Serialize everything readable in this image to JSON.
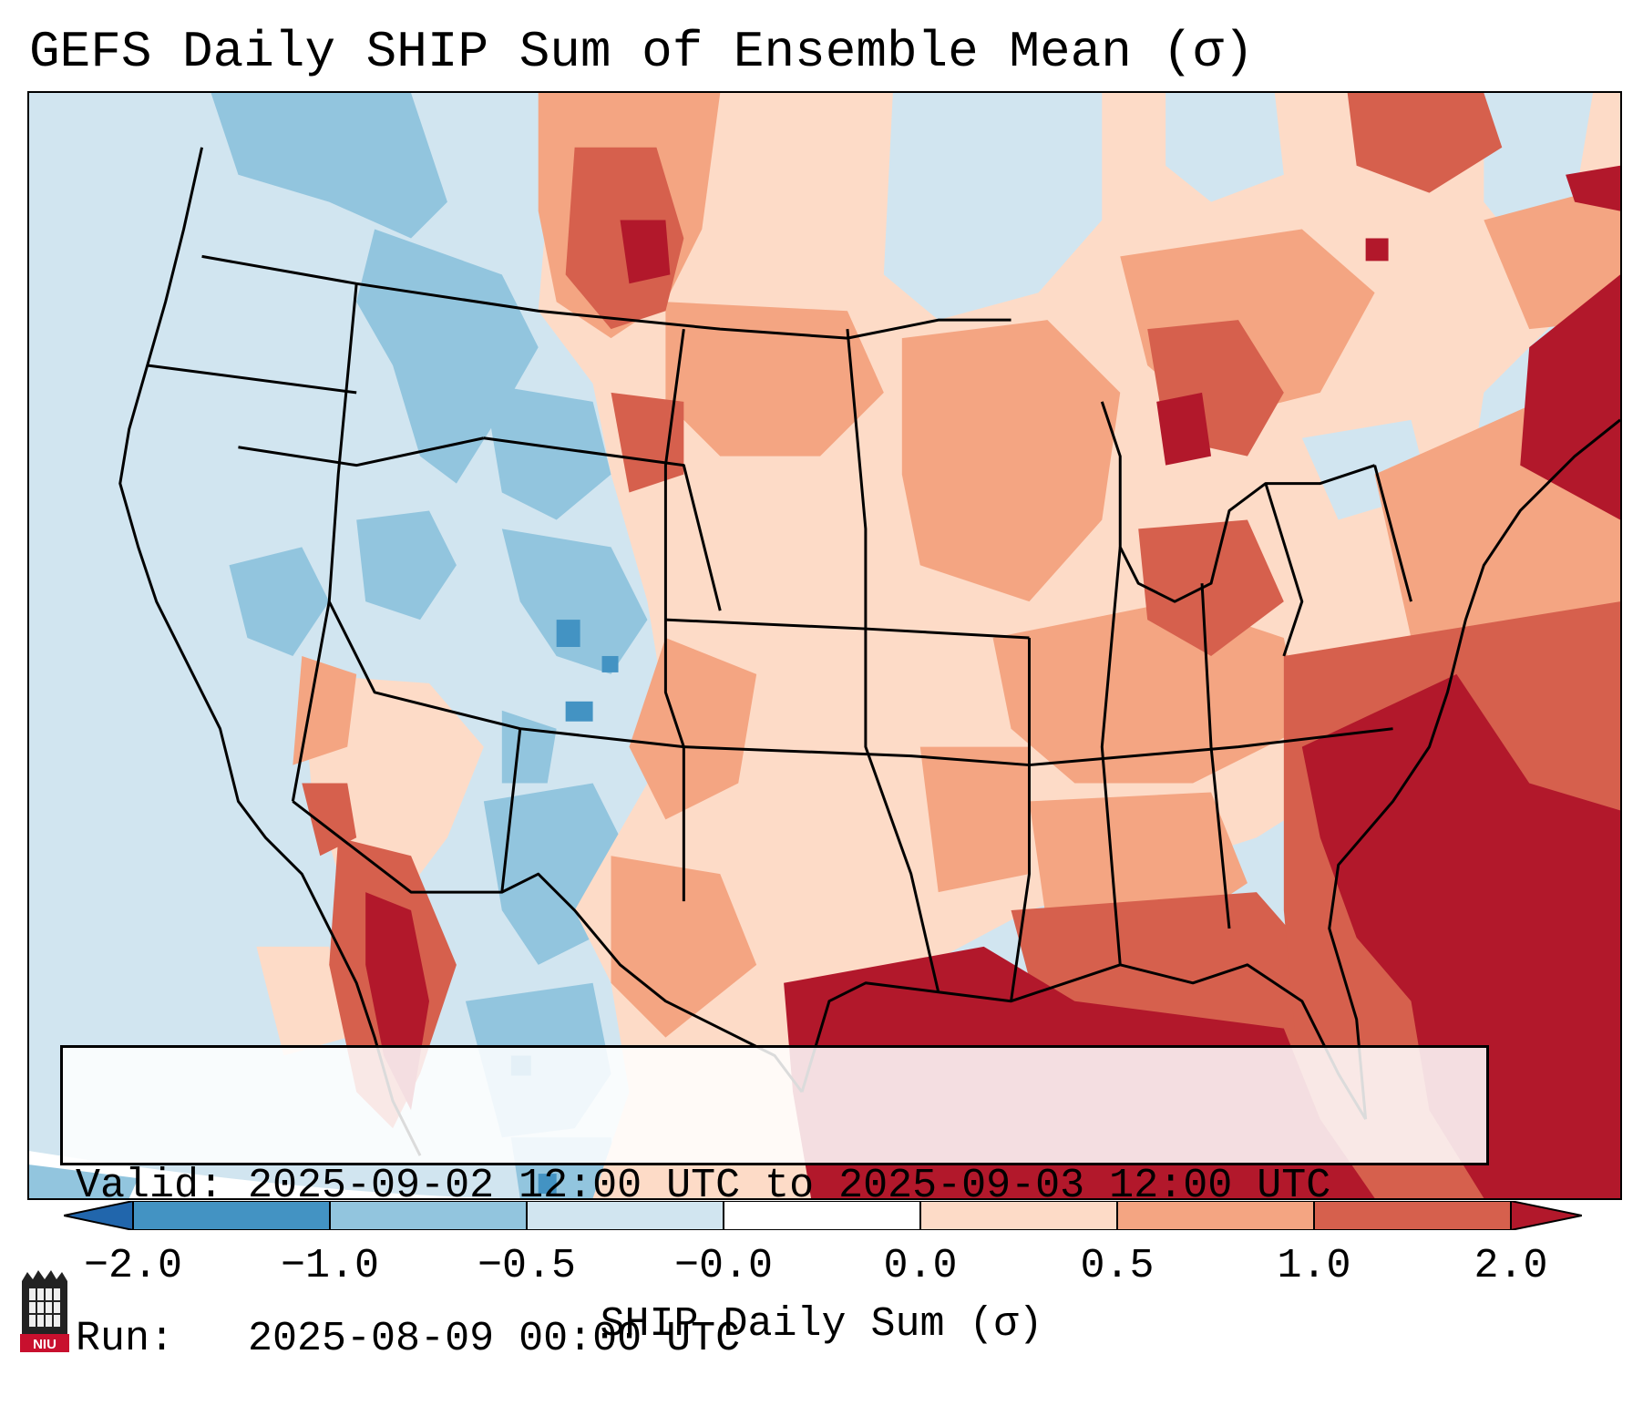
{
  "title": "GEFS Daily SHIP Sum of Ensemble Mean (σ)",
  "valid_line": "Valid: 2025-09-02 12:00 UTC to 2025-09-03 12:00 UTC",
  "run_line": "Run:   2025-08-09 00:00 UTC",
  "colorbar": {
    "label": "SHIP Daily Sum (σ)",
    "tick_labels": [
      "−2.0",
      "−1.0",
      "−0.5",
      "−0.0",
      "0.0",
      "0.5",
      "1.0",
      "2.0"
    ],
    "bins": [
      {
        "from": -2.0,
        "to": -1.0,
        "color": "#4393c3"
      },
      {
        "from": -1.0,
        "to": -0.5,
        "color": "#92c5de"
      },
      {
        "from": -0.5,
        "to": -0.0,
        "color": "#d1e5f0"
      },
      {
        "from": -0.0,
        "to": 0.0,
        "color": "#ffffff"
      },
      {
        "from": 0.0,
        "to": 0.5,
        "color": "#fddbc7"
      },
      {
        "from": 0.5,
        "to": 1.0,
        "color": "#f4a582"
      },
      {
        "from": 1.0,
        "to": 2.0,
        "color": "#d6604d"
      }
    ],
    "under_color": "#2166ac",
    "over_color": "#b2182b"
  },
  "logo_text": "NIU"
}
